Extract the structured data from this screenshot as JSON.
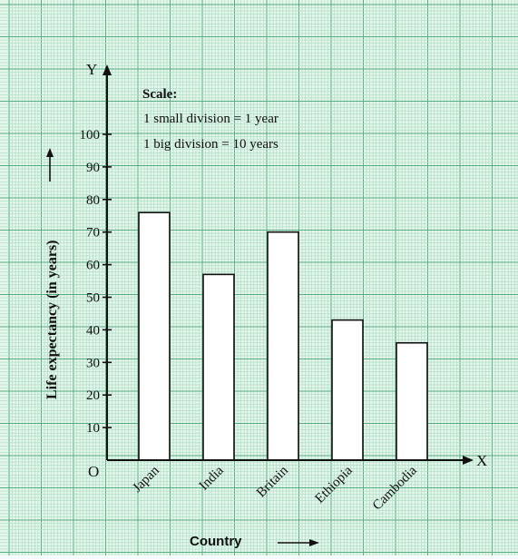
{
  "chart_data": {
    "type": "bar",
    "categories": [
      "Japan",
      "India",
      "Britain",
      "Ethiopia",
      "Cambodia"
    ],
    "values": [
      76,
      57,
      70,
      43,
      36
    ],
    "title": "",
    "xlabel": "Country",
    "ylabel": "Life expectancy (in years)",
    "ylim": [
      0,
      100
    ],
    "yticks": [
      10,
      20,
      30,
      40,
      50,
      60,
      70,
      80,
      90,
      100
    ],
    "axis_x_letter": "X",
    "axis_y_letter": "Y",
    "origin_label": "O",
    "grid": true,
    "scale": {
      "title": "Scale:",
      "small": "1 small division = 1 year",
      "big": "1 big division = 10 years"
    },
    "colors": {
      "grid_minor": "#a9dcc1",
      "grid_major": "#5aac82",
      "background": "#e4f5eb",
      "bar_fill": "#ffffff",
      "bar_stroke": "#111111"
    }
  }
}
